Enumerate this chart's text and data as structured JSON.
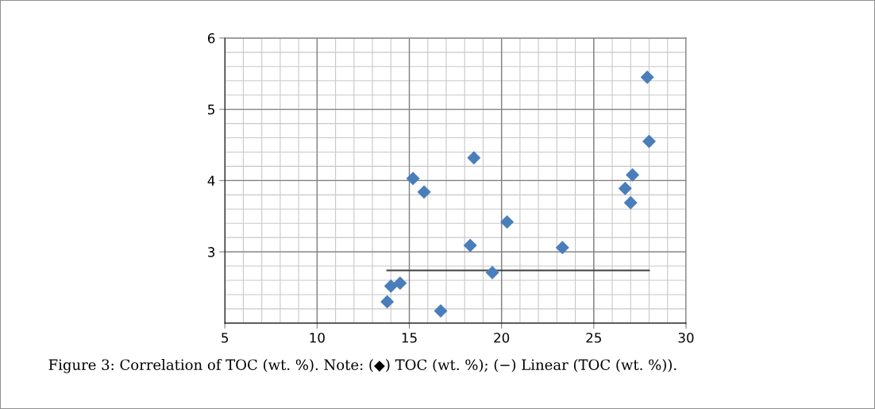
{
  "chart_data": {
    "type": "scatter",
    "x": [
      14.0,
      14.5,
      13.8,
      16.7,
      15.2,
      15.8,
      18.5,
      18.3,
      19.5,
      20.3,
      23.3,
      26.7,
      27.1,
      27.0,
      27.9,
      28.0
    ],
    "series": [
      {
        "color": "#4a7ebb",
        "marker": "diamond",
        "values": [
          2.52,
          2.56,
          2.3,
          2.17,
          4.03,
          3.84,
          4.32,
          3.09,
          2.71,
          3.42,
          3.06,
          3.89,
          4.08,
          3.69,
          5.45,
          4.55
        ]
      },
      {
        "type": "line",
        "color": "#404040",
        "marker": "none",
        "line_style": "solid",
        "x": [
          13.8,
          28.0
        ],
        "values": [
          2.74,
          2.74
        ]
      }
    ],
    "xlim": [
      5,
      30
    ],
    "xticks": [
      5,
      10,
      15,
      20,
      25,
      30
    ],
    "ylim": [
      2,
      6
    ],
    "yticks": [
      3,
      4,
      5,
      6
    ],
    "grid": true,
    "legend": false,
    "annotations": [
      "Figure 3: Correlation of TOC (wt. %). Note: (◆) TOC (wt. %); (−) Linear (TOC (wt. %))."
    ]
  }
}
